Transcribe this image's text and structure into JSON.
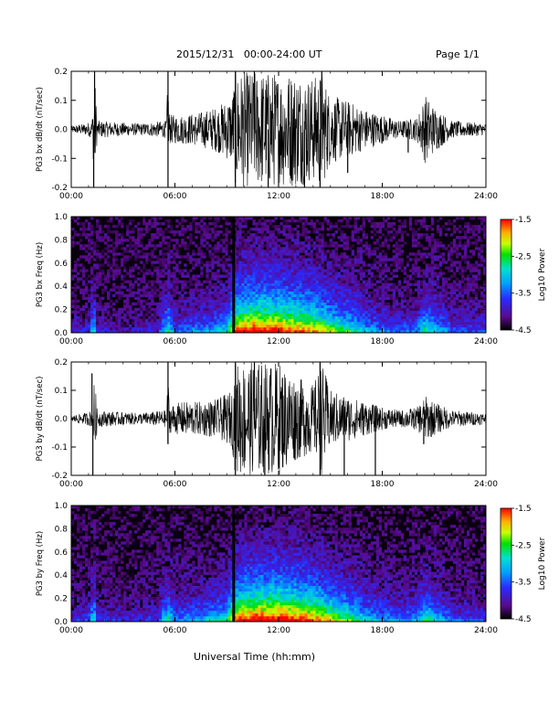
{
  "header": {
    "title": "2015/12/31   00:00-24:00 UT",
    "page": "Page 1/1"
  },
  "xaxis_title": "Universal Time (hh:mm)",
  "chart_data": [
    {
      "type": "line",
      "ylabel": "PG3 bx dB/dt (nT/sec)",
      "xticks": [
        "00:00",
        "06:00",
        "12:00",
        "18:00",
        "24:00"
      ],
      "yticks": [
        "-0.2",
        "-0.1",
        "0.0",
        "0.1",
        "0.2"
      ],
      "xlim": [
        0,
        24
      ],
      "ylim": [
        -0.2,
        0.2
      ],
      "envelope": [
        [
          0,
          0.012
        ],
        [
          0.8,
          0.02
        ],
        [
          1.2,
          0.03
        ],
        [
          1.35,
          0.2
        ],
        [
          1.5,
          0.03
        ],
        [
          2.5,
          0.025
        ],
        [
          4,
          0.02
        ],
        [
          5.5,
          0.03
        ],
        [
          5.6,
          0.2
        ],
        [
          5.7,
          0.05
        ],
        [
          6.5,
          0.05
        ],
        [
          7.5,
          0.06
        ],
        [
          8.5,
          0.08
        ],
        [
          9.3,
          0.12
        ],
        [
          9.5,
          0.2
        ],
        [
          10,
          0.2
        ],
        [
          11,
          0.2
        ],
        [
          12,
          0.2
        ],
        [
          13,
          0.2
        ],
        [
          14,
          0.18
        ],
        [
          14.5,
          0.2
        ],
        [
          15,
          0.12
        ],
        [
          16,
          0.1
        ],
        [
          17,
          0.07
        ],
        [
          18,
          0.05
        ],
        [
          19,
          0.03
        ],
        [
          20,
          0.04
        ],
        [
          20.5,
          0.12
        ],
        [
          21,
          0.08
        ],
        [
          22,
          0.03
        ],
        [
          24,
          0.02
        ]
      ],
      "spikes": [
        [
          1.3,
          -0.22
        ],
        [
          1.35,
          0.21
        ],
        [
          5.6,
          -0.22
        ],
        [
          5.6,
          0.21
        ],
        [
          9.5,
          -0.22
        ],
        [
          9.5,
          0.21
        ],
        [
          10.6,
          0.22
        ],
        [
          11.4,
          -0.22
        ],
        [
          13.5,
          -0.22
        ],
        [
          14.4,
          -0.22
        ],
        [
          14.5,
          0.21
        ],
        [
          16.0,
          -0.15
        ],
        [
          19.5,
          -0.08
        ]
      ]
    },
    {
      "type": "heatmap",
      "ylabel": "PG3 bx Freq (Hz)",
      "xticks": [
        "00:00",
        "06:00",
        "12:00",
        "18:00",
        "24:00"
      ],
      "yticks": [
        "0.0",
        "0.2",
        "0.4",
        "0.6",
        "0.8",
        "1.0"
      ],
      "xlim": [
        0,
        24
      ],
      "ylim": [
        0,
        1
      ],
      "colorbar": {
        "label": "Log10 Power",
        "ticks": [
          "-1.5",
          "-2.5",
          "-3.5",
          "-4.5"
        ],
        "range": [
          -4.5,
          -1.5
        ]
      },
      "activity": [
        [
          0,
          0.15
        ],
        [
          1,
          0.2
        ],
        [
          1.3,
          0.6
        ],
        [
          1.5,
          0.2
        ],
        [
          3,
          0.12
        ],
        [
          5,
          0.2
        ],
        [
          5.6,
          0.6
        ],
        [
          6,
          0.3
        ],
        [
          7,
          0.35
        ],
        [
          8,
          0.4
        ],
        [
          9,
          0.5
        ],
        [
          9.5,
          0.9
        ],
        [
          10,
          0.95
        ],
        [
          11,
          1
        ],
        [
          12,
          0.95
        ],
        [
          13,
          0.9
        ],
        [
          14,
          0.85
        ],
        [
          15,
          0.7
        ],
        [
          16,
          0.6
        ],
        [
          17,
          0.45
        ],
        [
          18,
          0.35
        ],
        [
          19,
          0.3
        ],
        [
          20,
          0.35
        ],
        [
          20.5,
          0.6
        ],
        [
          21,
          0.5
        ],
        [
          22,
          0.3
        ],
        [
          24,
          0.25
        ]
      ],
      "gaps": [
        9.4
      ]
    },
    {
      "type": "line",
      "ylabel": "PG3 by dB/dt (nT/sec)",
      "xticks": [
        "00:00",
        "06:00",
        "12:00",
        "18:00",
        "24:00"
      ],
      "yticks": [
        "-0.2",
        "-0.1",
        "0.0",
        "0.1",
        "0.2"
      ],
      "xlim": [
        0,
        24
      ],
      "ylim": [
        -0.2,
        0.2
      ],
      "envelope": [
        [
          0,
          0.012
        ],
        [
          0.8,
          0.02
        ],
        [
          1.2,
          0.03
        ],
        [
          1.35,
          0.15
        ],
        [
          1.5,
          0.03
        ],
        [
          2.5,
          0.025
        ],
        [
          4,
          0.02
        ],
        [
          5.5,
          0.03
        ],
        [
          5.6,
          0.15
        ],
        [
          5.7,
          0.05
        ],
        [
          6.5,
          0.06
        ],
        [
          7.5,
          0.06
        ],
        [
          8.5,
          0.07
        ],
        [
          9.3,
          0.1
        ],
        [
          9.5,
          0.2
        ],
        [
          10,
          0.2
        ],
        [
          11,
          0.2
        ],
        [
          12,
          0.2
        ],
        [
          13,
          0.15
        ],
        [
          14,
          0.12
        ],
        [
          14.5,
          0.2
        ],
        [
          15,
          0.1
        ],
        [
          16,
          0.08
        ],
        [
          17,
          0.06
        ],
        [
          18,
          0.04
        ],
        [
          19,
          0.03
        ],
        [
          20,
          0.04
        ],
        [
          20.5,
          0.08
        ],
        [
          21,
          0.06
        ],
        [
          22,
          0.03
        ],
        [
          24,
          0.02
        ]
      ],
      "spikes": [
        [
          1.2,
          0.16
        ],
        [
          1.25,
          -0.22
        ],
        [
          5.6,
          0.21
        ],
        [
          5.6,
          -0.09
        ],
        [
          9.5,
          -0.22
        ],
        [
          9.5,
          0.21
        ],
        [
          10.6,
          0.22
        ],
        [
          11.2,
          -0.22
        ],
        [
          14.4,
          0.21
        ],
        [
          14.4,
          -0.22
        ],
        [
          15.8,
          -0.2
        ],
        [
          17.6,
          -0.2
        ],
        [
          20.4,
          -0.09
        ]
      ]
    },
    {
      "type": "heatmap",
      "ylabel": "PG3 by Freq (Hz)",
      "xticks": [
        "00:00",
        "06:00",
        "12:00",
        "18:00",
        "24:00"
      ],
      "yticks": [
        "0.0",
        "0.2",
        "0.4",
        "0.6",
        "0.8",
        "1.0"
      ],
      "xlim": [
        0,
        24
      ],
      "ylim": [
        0,
        1
      ],
      "colorbar": {
        "label": "Log10 Power",
        "ticks": [
          "-1.5",
          "-2.5",
          "-3.5",
          "-4.5"
        ],
        "range": [
          -4.5,
          -1.5
        ]
      },
      "activity": [
        [
          0,
          0.2
        ],
        [
          1,
          0.25
        ],
        [
          1.3,
          0.6
        ],
        [
          1.5,
          0.25
        ],
        [
          3,
          0.2
        ],
        [
          5,
          0.25
        ],
        [
          5.6,
          0.6
        ],
        [
          6,
          0.35
        ],
        [
          7,
          0.4
        ],
        [
          8,
          0.45
        ],
        [
          9,
          0.55
        ],
        [
          9.5,
          0.9
        ],
        [
          10,
          0.95
        ],
        [
          11,
          1
        ],
        [
          12,
          1
        ],
        [
          13,
          0.95
        ],
        [
          14,
          0.9
        ],
        [
          15,
          0.75
        ],
        [
          16,
          0.65
        ],
        [
          17,
          0.5
        ],
        [
          18,
          0.4
        ],
        [
          19,
          0.35
        ],
        [
          20,
          0.4
        ],
        [
          20.5,
          0.6
        ],
        [
          21,
          0.5
        ],
        [
          22,
          0.3
        ],
        [
          24,
          0.25
        ]
      ],
      "gaps": [
        9.4
      ]
    }
  ]
}
